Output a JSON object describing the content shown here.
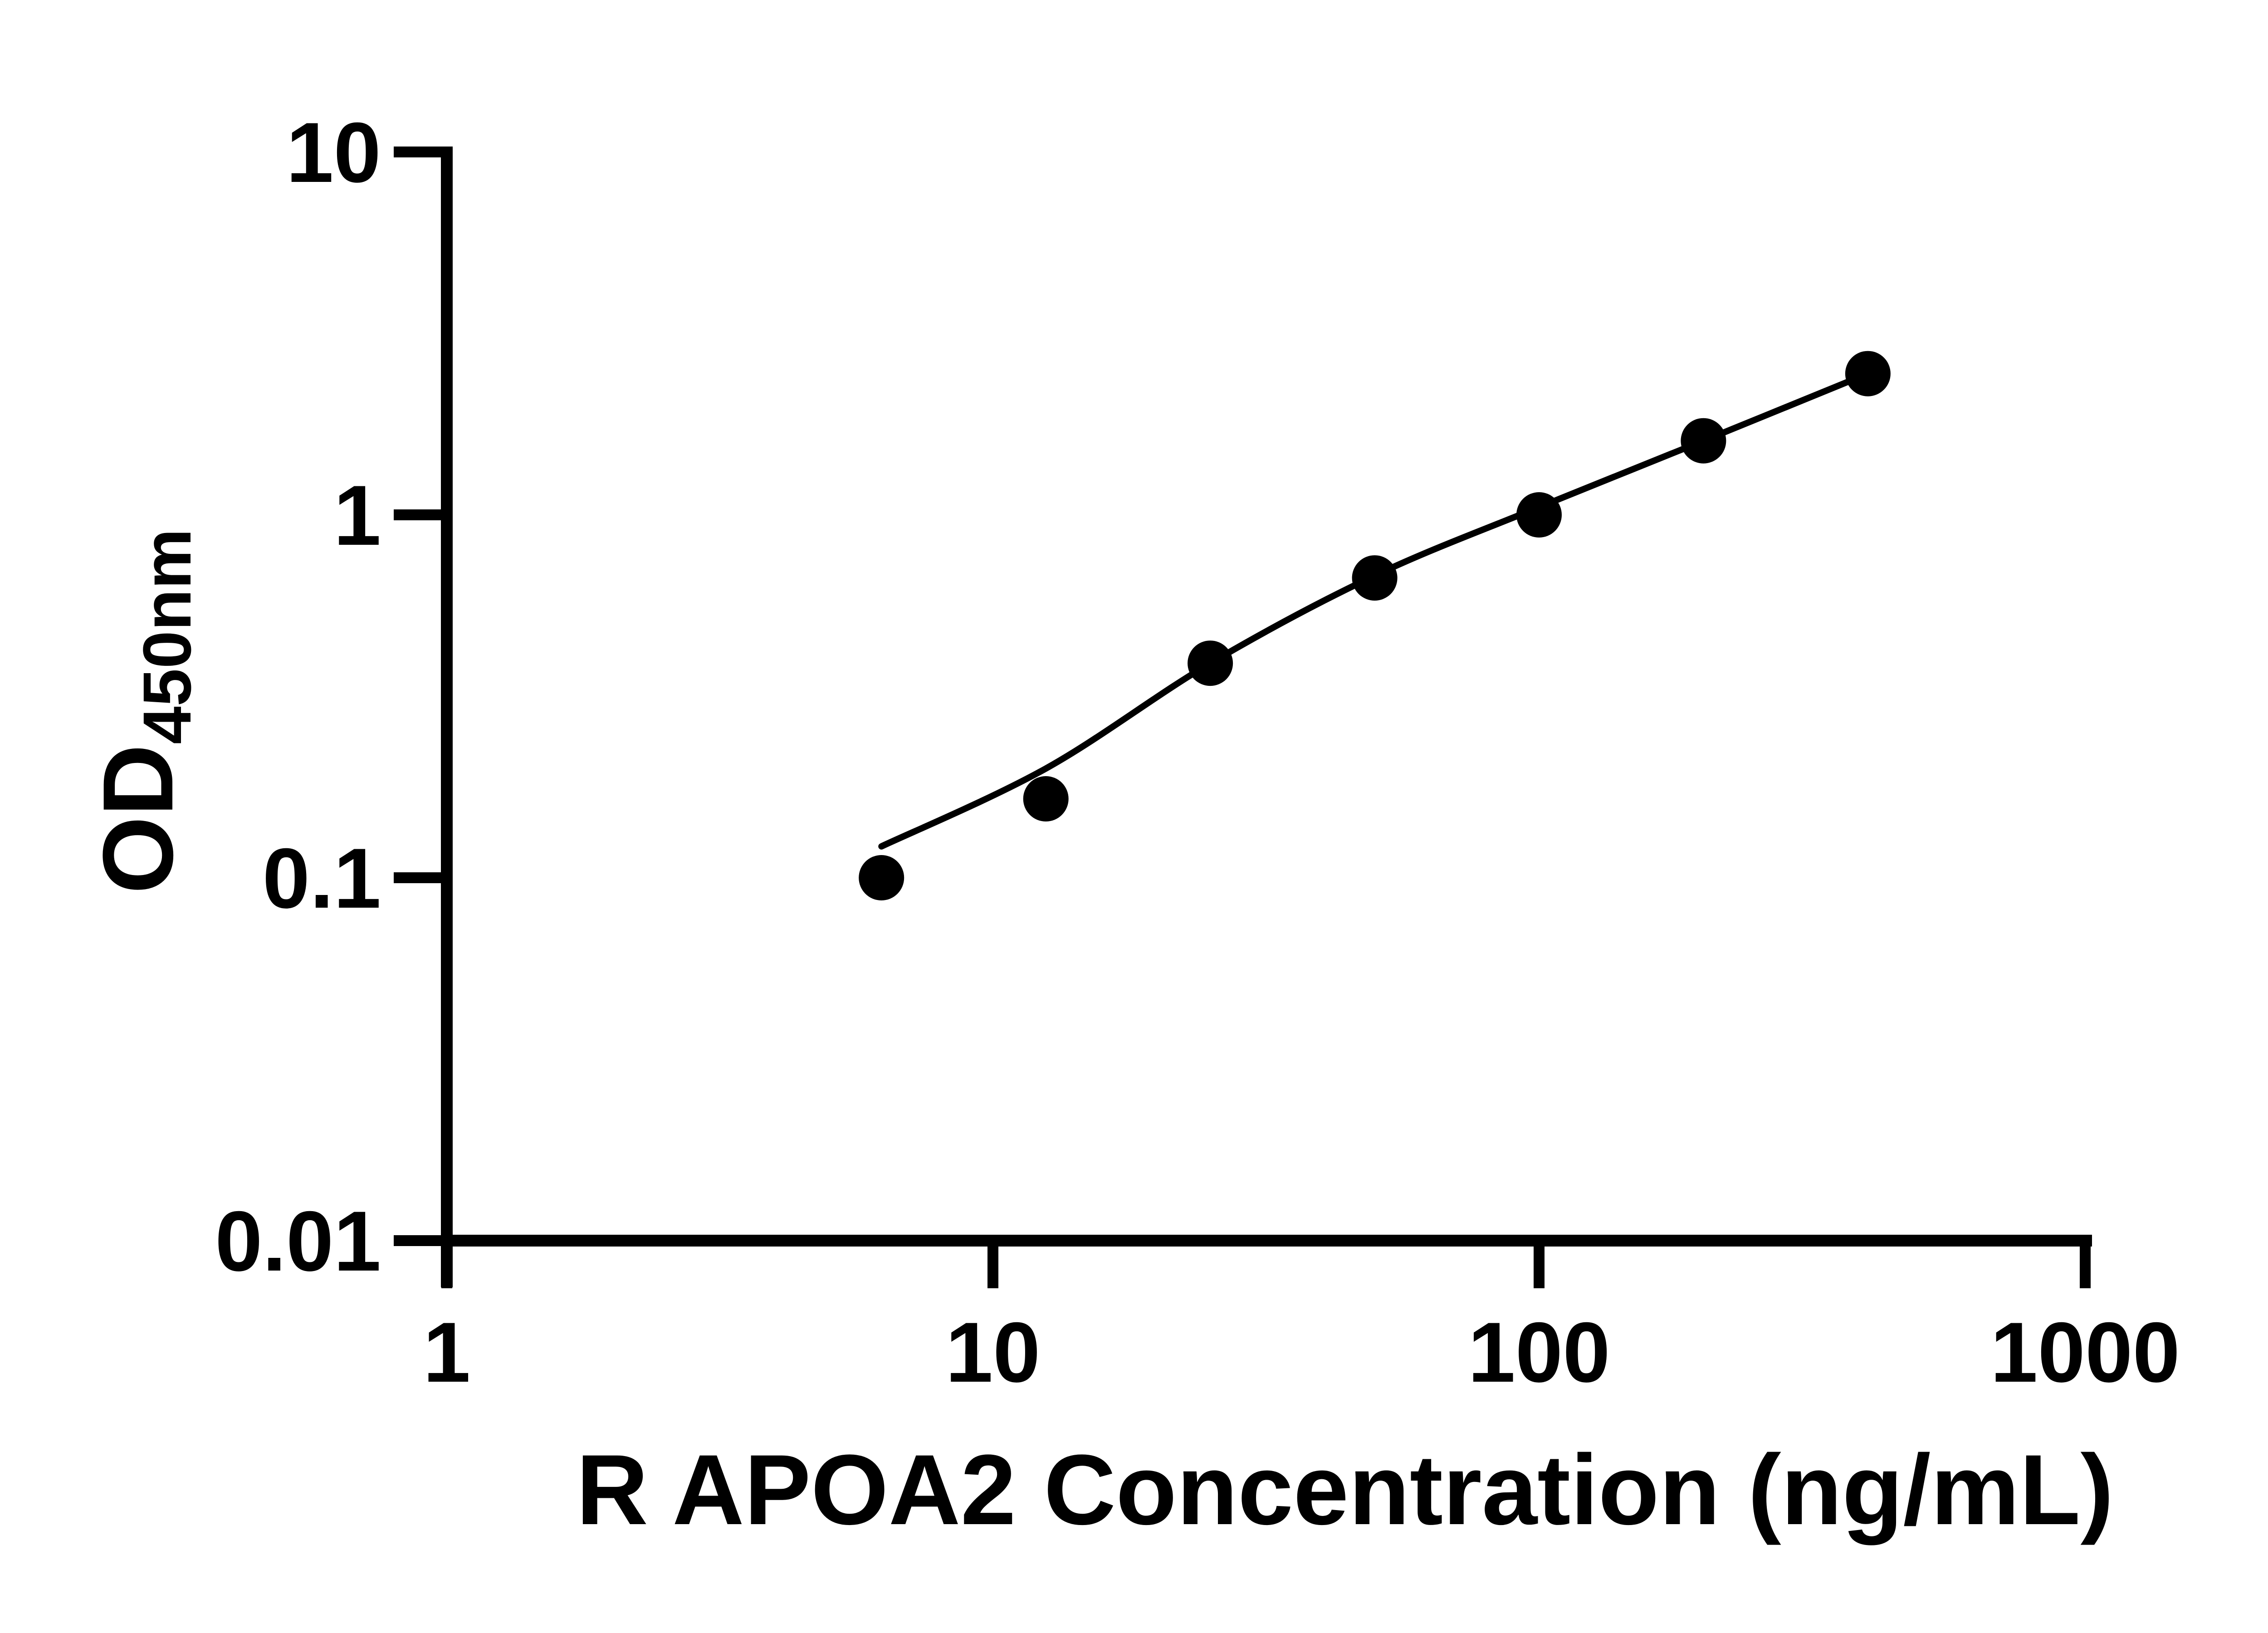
{
  "page": {
    "background": "#ffffff"
  },
  "chart_data": {
    "type": "scatter",
    "title": "",
    "xlabel": "R APOA2 Concentration (ng/mL)",
    "ylabel": {
      "main": "OD",
      "subscript": "450nm"
    },
    "x_scale": "log10",
    "y_scale": "log10",
    "xlim": [
      1,
      1000
    ],
    "ylim": [
      0.01,
      10
    ],
    "grid": false,
    "legend": false,
    "colors": {
      "points": "#000000",
      "curve": "#000000",
      "axis": "#000000",
      "text": "#000000",
      "background": "#ffffff"
    },
    "x_ticks": {
      "values": [
        1,
        10,
        100,
        1000
      ],
      "labels": [
        "1",
        "10",
        "100",
        "1000"
      ]
    },
    "y_ticks": {
      "values": [
        10,
        1,
        0.1,
        0.01
      ],
      "labels": [
        "10",
        "1",
        "0.1",
        "0.01"
      ]
    },
    "series": [
      {
        "name": "standards",
        "type": "scatter",
        "marker": "filled-circle",
        "points": [
          {
            "x": 6.25,
            "y": 0.1
          },
          {
            "x": 12.5,
            "y": 0.165
          },
          {
            "x": 25,
            "y": 0.39
          },
          {
            "x": 50,
            "y": 0.67
          },
          {
            "x": 100,
            "y": 1.0
          },
          {
            "x": 200,
            "y": 1.6
          },
          {
            "x": 400,
            "y": 2.45
          }
        ]
      },
      {
        "name": "fitted-curve",
        "type": "line",
        "points": [
          {
            "x": 6.25,
            "y": 0.122
          },
          {
            "x": 12.5,
            "y": 0.2
          },
          {
            "x": 25,
            "y": 0.39
          },
          {
            "x": 50,
            "y": 0.68
          },
          {
            "x": 100,
            "y": 1.05
          },
          {
            "x": 200,
            "y": 1.6
          },
          {
            "x": 400,
            "y": 2.45
          }
        ]
      }
    ]
  }
}
